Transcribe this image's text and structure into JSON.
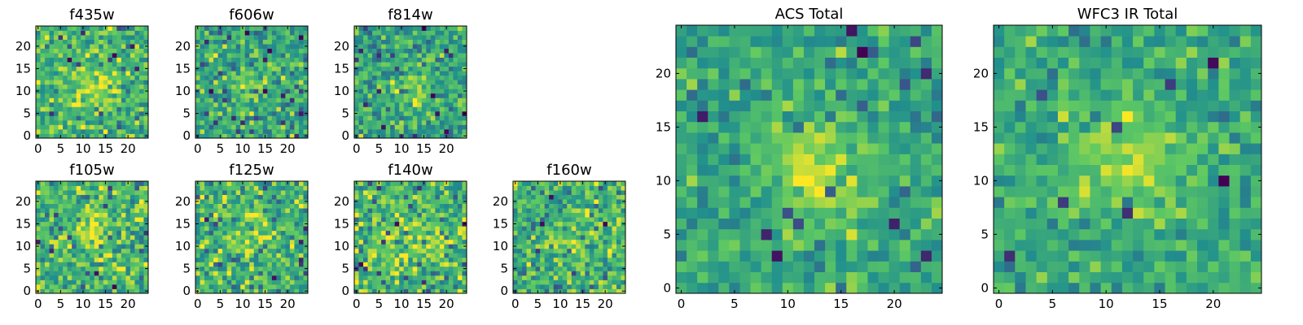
{
  "colormap": {
    "name": "viridis",
    "stops": [
      "#440154",
      "#3b528b",
      "#21908d",
      "#5dc863",
      "#fde725"
    ]
  },
  "chart_data": [
    {
      "type": "heatmap",
      "title": "f435w",
      "grid_size": 25,
      "xticks": [
        "0",
        "5",
        "10",
        "15",
        "20"
      ],
      "yticks": [
        "0",
        "5",
        "10",
        "15",
        "20"
      ],
      "xlim": [
        -0.5,
        24.5
      ],
      "ylim": [
        -0.5,
        24.5
      ],
      "values": [],
      "grid": false
    },
    {
      "type": "heatmap",
      "title": "f606w",
      "grid_size": 25,
      "xticks": [
        "0",
        "5",
        "10",
        "15",
        "20"
      ],
      "yticks": [
        "0",
        "5",
        "10",
        "15",
        "20"
      ],
      "xlim": [
        -0.5,
        24.5
      ],
      "ylim": [
        -0.5,
        24.5
      ],
      "values": [],
      "grid": false
    },
    {
      "type": "heatmap",
      "title": "f814w",
      "grid_size": 25,
      "xticks": [
        "0",
        "5",
        "10",
        "15",
        "20"
      ],
      "yticks": [
        "0",
        "5",
        "10",
        "15",
        "20"
      ],
      "xlim": [
        -0.5,
        24.5
      ],
      "ylim": [
        -0.5,
        24.5
      ],
      "values": [],
      "grid": false
    },
    {
      "type": "heatmap",
      "title": "f105w",
      "grid_size": 25,
      "xticks": [
        "0",
        "5",
        "10",
        "15",
        "20"
      ],
      "yticks": [
        "0",
        "5",
        "10",
        "15",
        "20"
      ],
      "xlim": [
        -0.5,
        24.5
      ],
      "ylim": [
        -0.5,
        24.5
      ],
      "values": [],
      "grid": false
    },
    {
      "type": "heatmap",
      "title": "f125w",
      "grid_size": 25,
      "xticks": [
        "0",
        "5",
        "10",
        "15",
        "20"
      ],
      "yticks": [
        "0",
        "5",
        "10",
        "15",
        "20"
      ],
      "xlim": [
        -0.5,
        24.5
      ],
      "ylim": [
        -0.5,
        24.5
      ],
      "values": [],
      "grid": false
    },
    {
      "type": "heatmap",
      "title": "f140w",
      "grid_size": 25,
      "xticks": [
        "0",
        "5",
        "10",
        "15",
        "20"
      ],
      "yticks": [
        "0",
        "5",
        "10",
        "15",
        "20"
      ],
      "xlim": [
        -0.5,
        24.5
      ],
      "ylim": [
        -0.5,
        24.5
      ],
      "values": [],
      "grid": false
    },
    {
      "type": "heatmap",
      "title": "f160w",
      "grid_size": 25,
      "xticks": [
        "0",
        "5",
        "10",
        "15",
        "20"
      ],
      "yticks": [
        "0",
        "5",
        "10",
        "15",
        "20"
      ],
      "xlim": [
        -0.5,
        24.5
      ],
      "ylim": [
        -0.5,
        24.5
      ],
      "values": [],
      "grid": false
    },
    {
      "type": "heatmap",
      "title": "ACS Total",
      "grid_size": 25,
      "xticks": [
        "0",
        "5",
        "10",
        "15",
        "20"
      ],
      "yticks": [
        "0",
        "5",
        "10",
        "15",
        "20"
      ],
      "xlim": [
        -0.5,
        24.5
      ],
      "ylim": [
        -0.5,
        24.5
      ],
      "values": [],
      "grid": false
    },
    {
      "type": "heatmap",
      "title": "WFC3 IR Total",
      "grid_size": 25,
      "xticks": [
        "0",
        "5",
        "10",
        "15",
        "20"
      ],
      "yticks": [
        "0",
        "5",
        "10",
        "15",
        "20"
      ],
      "xlim": [
        -0.5,
        24.5
      ],
      "ylim": [
        -0.5,
        24.5
      ],
      "values": [],
      "grid": false
    }
  ]
}
